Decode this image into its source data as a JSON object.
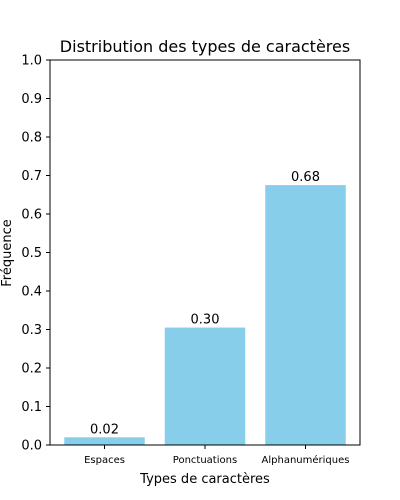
{
  "chart_data": {
    "type": "bar",
    "title": "Distribution des types de caractères",
    "xlabel": "Types de caractères",
    "ylabel": "Fréquence",
    "categories": [
      "Espaces",
      "Ponctuations",
      "Alphanumériques"
    ],
    "values": [
      0.02,
      0.305,
      0.675
    ],
    "value_labels": [
      "0.02",
      "0.30",
      "0.68"
    ],
    "yticks": [
      0.0,
      0.1,
      0.2,
      0.3,
      0.4,
      0.5,
      0.6,
      0.7,
      0.8,
      0.9,
      1.0
    ],
    "ytick_labels": [
      "0.0",
      "0.1",
      "0.2",
      "0.3",
      "0.4",
      "0.5",
      "0.6",
      "0.7",
      "0.8",
      "0.9",
      "1.0"
    ],
    "ylim": [
      0,
      1.0
    ],
    "grid": false,
    "bar_color": "#87ceeb"
  }
}
